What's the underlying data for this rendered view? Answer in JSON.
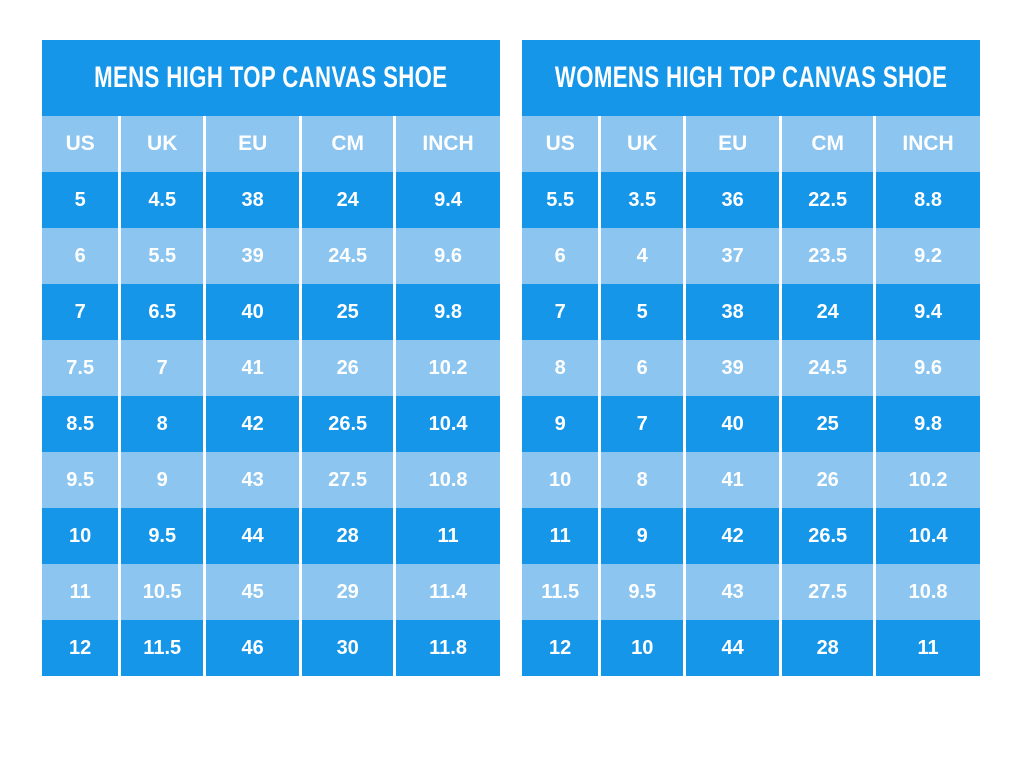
{
  "colors": {
    "dark_blue": "#1596E9",
    "light_blue": "#8CC5EF",
    "text": "#FFFFFF",
    "separator": "#FFFFFF",
    "background": "#FFFFFF"
  },
  "chart_data": [
    {
      "type": "table",
      "title": "MENS HIGH TOP CANVAS SHOE",
      "columns": [
        "US",
        "UK",
        "EU",
        "CM",
        "INCH"
      ],
      "rows": [
        [
          "5",
          "4.5",
          "38",
          "24",
          "9.4"
        ],
        [
          "6",
          "5.5",
          "39",
          "24.5",
          "9.6"
        ],
        [
          "7",
          "6.5",
          "40",
          "25",
          "9.8"
        ],
        [
          "7.5",
          "7",
          "41",
          "26",
          "10.2"
        ],
        [
          "8.5",
          "8",
          "42",
          "26.5",
          "10.4"
        ],
        [
          "9.5",
          "9",
          "43",
          "27.5",
          "10.8"
        ],
        [
          "10",
          "9.5",
          "44",
          "28",
          "11"
        ],
        [
          "11",
          "10.5",
          "45",
          "29",
          "11.4"
        ],
        [
          "12",
          "11.5",
          "46",
          "30",
          "11.8"
        ]
      ]
    },
    {
      "type": "table",
      "title": "WOMENS HIGH TOP CANVAS SHOE",
      "columns": [
        "US",
        "UK",
        "EU",
        "CM",
        "INCH"
      ],
      "rows": [
        [
          "5.5",
          "3.5",
          "36",
          "22.5",
          "8.8"
        ],
        [
          "6",
          "4",
          "37",
          "23.5",
          "9.2"
        ],
        [
          "7",
          "5",
          "38",
          "24",
          "9.4"
        ],
        [
          "8",
          "6",
          "39",
          "24.5",
          "9.6"
        ],
        [
          "9",
          "7",
          "40",
          "25",
          "9.8"
        ],
        [
          "10",
          "8",
          "41",
          "26",
          "10.2"
        ],
        [
          "11",
          "9",
          "42",
          "26.5",
          "10.4"
        ],
        [
          "11.5",
          "9.5",
          "43",
          "27.5",
          "10.8"
        ],
        [
          "12",
          "10",
          "44",
          "28",
          "11"
        ]
      ]
    }
  ]
}
